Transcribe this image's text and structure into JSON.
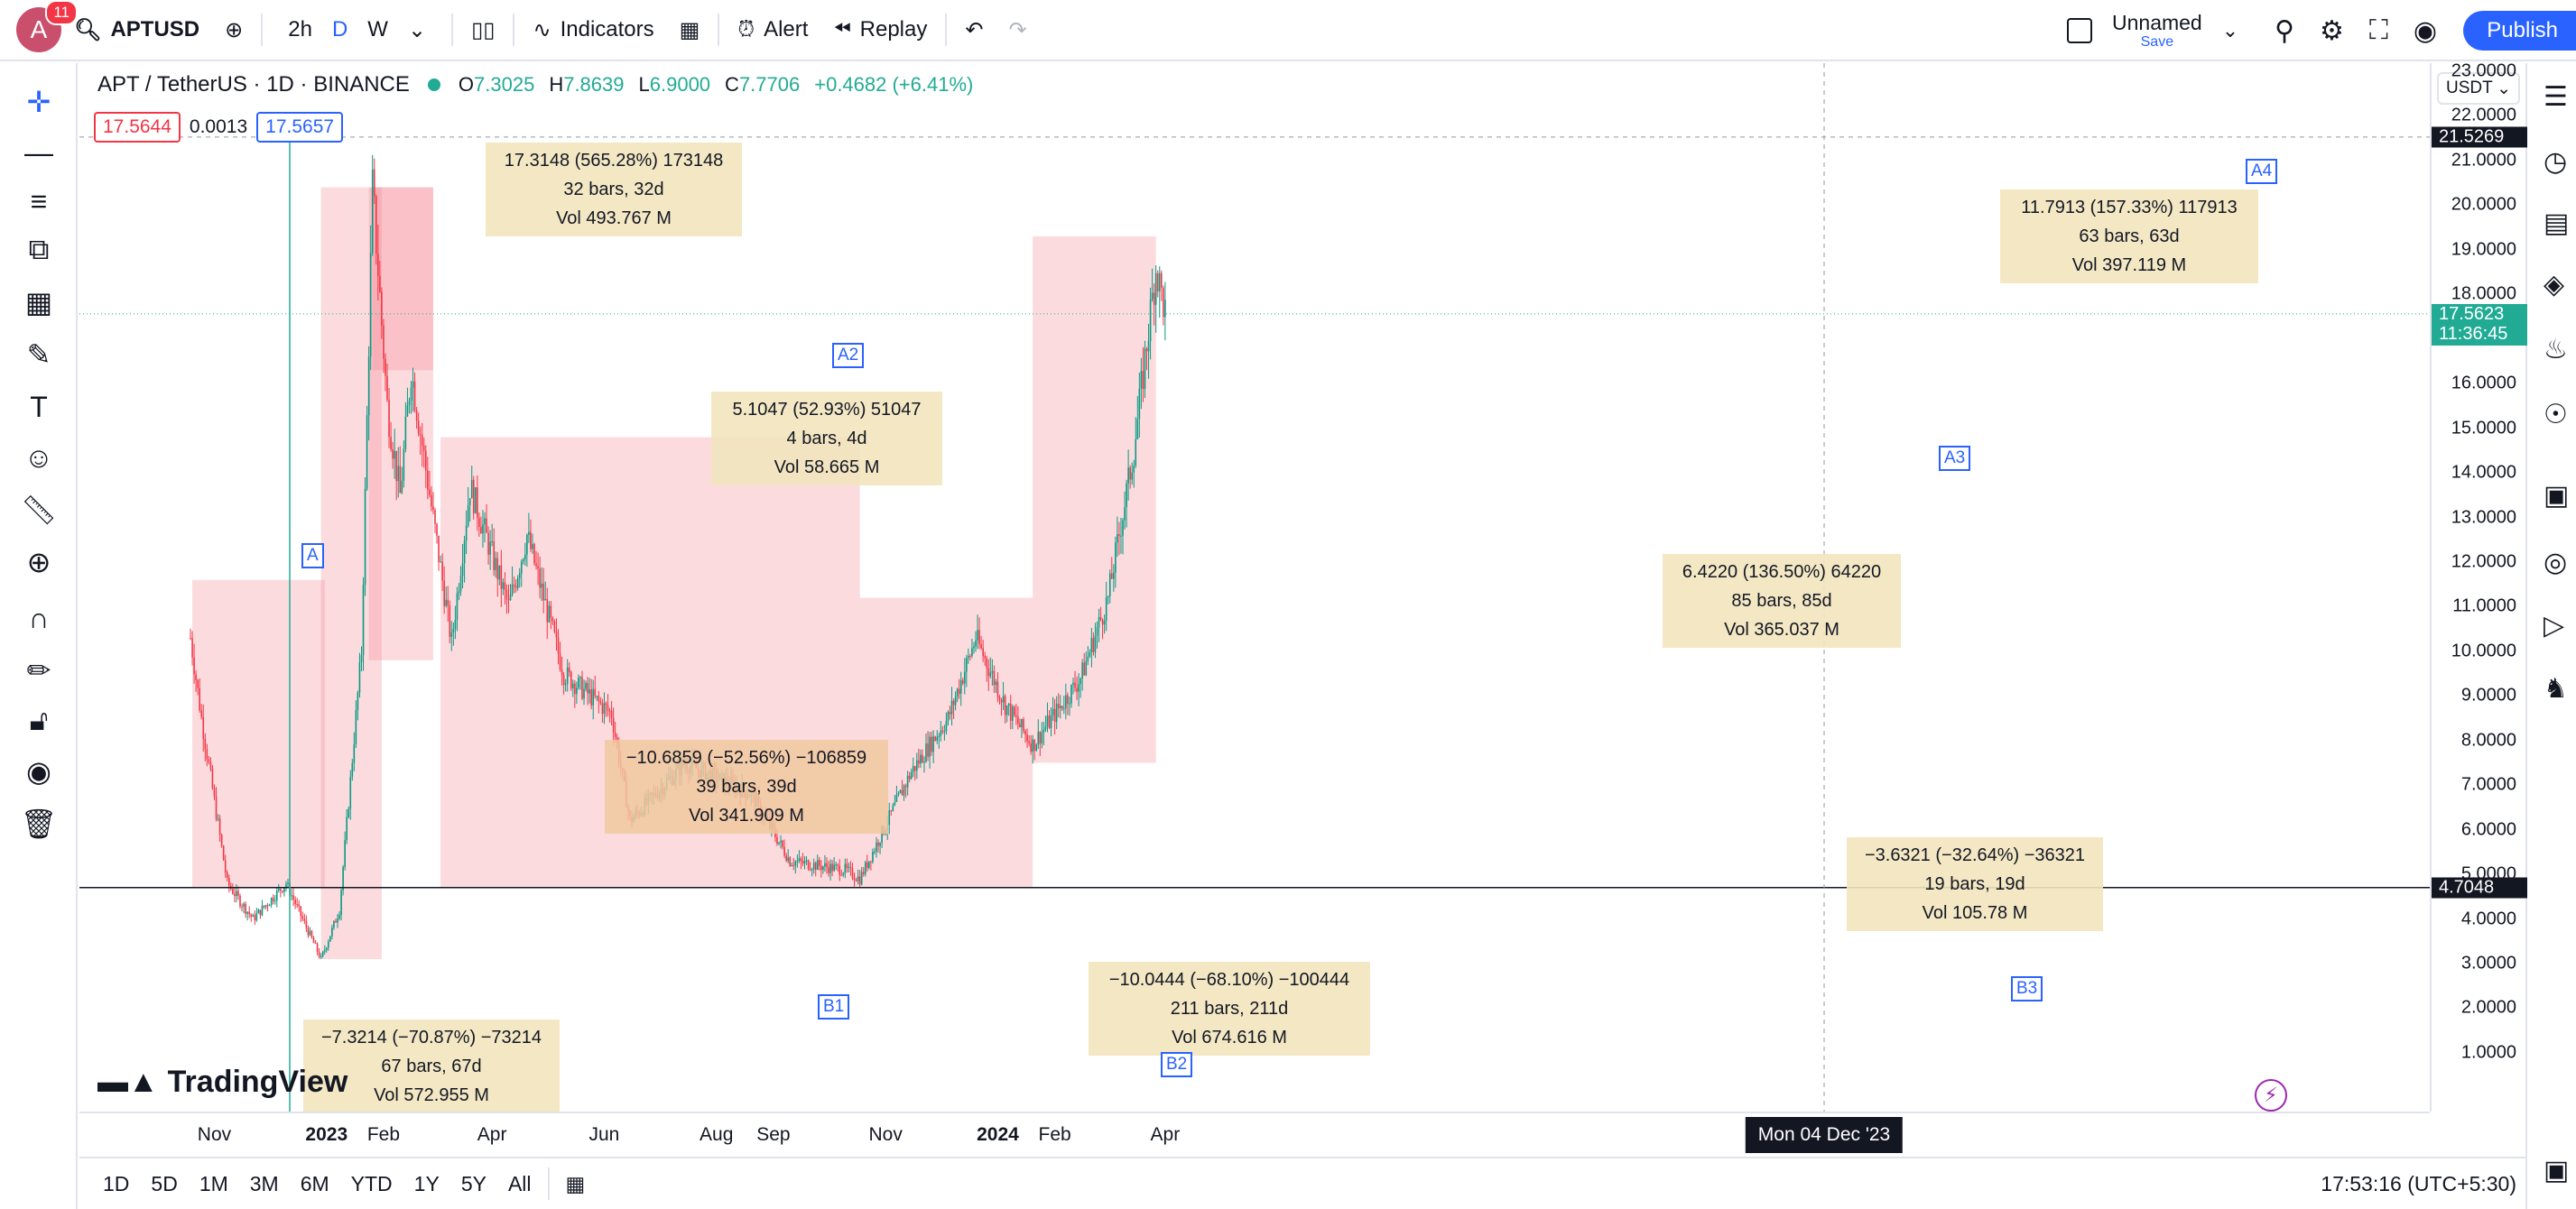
{
  "app": {
    "symbol_button": "APTUSD",
    "notification_count": "11",
    "avatar_letter": "A",
    "intervals": [
      "2h",
      "D",
      "W"
    ],
    "active_interval": "D",
    "indicators_label": "Indicators",
    "alert_label": "Alert",
    "replay_label": "Replay",
    "layout_name": "Unnamed",
    "save_label": "Save",
    "publish_label": "Publish"
  },
  "legend": {
    "title": "APT / TetherUS · 1D · BINANCE",
    "open": "7.3025",
    "high": "7.8639",
    "low": "6.9000",
    "close": "7.7706",
    "change": "+0.4682 (+6.41%)",
    "bid": "17.5644",
    "spread": "0.0013",
    "ask": "17.5657"
  },
  "price_scale": {
    "currency": "USDT",
    "labels": [
      "23.0000",
      "22.0000",
      "21.0000",
      "20.0000",
      "19.0000",
      "18.0000",
      "17.0000",
      "16.0000",
      "15.0000",
      "14.0000",
      "13.0000",
      "12.0000",
      "11.0000",
      "10.0000",
      "9.0000",
      "8.0000",
      "7.0000",
      "6.0000",
      "5.0000",
      "4.0000",
      "3.0000",
      "2.0000",
      "1.0000"
    ],
    "crosshair_price": "21.5269",
    "last_price": "17.5623",
    "countdown": "11:36:45",
    "hline_price": "4.7048"
  },
  "time_scale": {
    "labels": [
      {
        "text": "Nov",
        "bold": false
      },
      {
        "text": "2023",
        "bold": true
      },
      {
        "text": "Feb",
        "bold": false
      },
      {
        "text": "Apr",
        "bold": false
      },
      {
        "text": "Jun",
        "bold": false
      },
      {
        "text": "Aug",
        "bold": false
      },
      {
        "text": "Sep",
        "bold": false
      },
      {
        "text": "Nov",
        "bold": false
      },
      {
        "text": "2024",
        "bold": true
      },
      {
        "text": "Feb",
        "bold": false
      },
      {
        "text": "Apr",
        "bold": false
      }
    ],
    "crosshair_date": "Mon 04 Dec '23"
  },
  "bottom": {
    "ranges": [
      "1D",
      "5D",
      "1M",
      "3M",
      "6M",
      "YTD",
      "1Y",
      "5Y",
      "All"
    ],
    "clock": "17:53:16 (UTC+5:30)"
  },
  "watermark": "TradingView",
  "point_labels": [
    "A",
    "A2",
    "B1",
    "B2",
    "A3",
    "B3",
    "A4"
  ],
  "measures": [
    {
      "line1": "17.3148 (565.28%) 173148",
      "line2": "32 bars, 32d",
      "line3": "Vol 493.767 M"
    },
    {
      "line1": "5.1047 (52.93%) 51047",
      "line2": "4 bars, 4d",
      "line3": "Vol 58.665 M"
    },
    {
      "line1": "−10.6859 (−52.56%) −106859",
      "line2": "39 bars, 39d",
      "line3": "Vol 341.909 M"
    },
    {
      "line1": "−7.3214 (−70.87%) −73214",
      "line2": "67 bars, 67d",
      "line3": "Vol 572.955 M"
    },
    {
      "line1": "−10.0444 (−68.10%) −100444",
      "line2": "211 bars, 211d",
      "line3": "Vol 674.616 M"
    },
    {
      "line1": "6.4220 (136.50%) 64220",
      "line2": "85 bars, 85d",
      "line3": "Vol 365.037 M"
    },
    {
      "line1": "−3.6321 (−32.64%) −36321",
      "line2": "19 bars, 19d",
      "line3": "Vol 105.78 M"
    },
    {
      "line1": "11.7913 (157.33%) 117913",
      "line2": "63 bars, 63d",
      "line3": "Vol 397.119 M"
    }
  ],
  "chart_data": {
    "type": "candlestick",
    "ylim": [
      1,
      23
    ],
    "anchors": [
      {
        "date": "2022-10-19",
        "price": 10.3
      },
      {
        "date": "2022-10-25",
        "price": 8.5
      },
      {
        "date": "2022-11-08",
        "price": 4.8
      },
      {
        "date": "2022-11-22",
        "price": 4.0
      },
      {
        "date": "2022-12-10",
        "price": 4.8
      },
      {
        "date": "2022-12-29",
        "price": 3.1
      },
      {
        "date": "2023-01-08",
        "price": 4.2
      },
      {
        "date": "2023-01-20",
        "price": 10.0
      },
      {
        "date": "2023-01-26",
        "price": 20.4
      },
      {
        "date": "2023-02-03",
        "price": 15.5
      },
      {
        "date": "2023-02-10",
        "price": 13.5
      },
      {
        "date": "2023-02-16",
        "price": 16.3
      },
      {
        "date": "2023-03-10",
        "price": 10.2
      },
      {
        "date": "2023-03-20",
        "price": 13.7
      },
      {
        "date": "2023-04-10",
        "price": 11.0
      },
      {
        "date": "2023-04-20",
        "price": 12.6
      },
      {
        "date": "2023-05-10",
        "price": 9.5
      },
      {
        "date": "2023-06-05",
        "price": 8.6
      },
      {
        "date": "2023-06-15",
        "price": 6.2
      },
      {
        "date": "2023-07-15",
        "price": 7.5
      },
      {
        "date": "2023-08-20",
        "price": 6.8
      },
      {
        "date": "2023-09-10",
        "price": 5.3
      },
      {
        "date": "2023-10-10",
        "price": 5.1
      },
      {
        "date": "2023-10-18",
        "price": 4.9
      },
      {
        "date": "2023-11-15",
        "price": 7.3
      },
      {
        "date": "2023-12-05",
        "price": 8.5
      },
      {
        "date": "2023-12-20",
        "price": 10.3
      },
      {
        "date": "2024-01-05",
        "price": 8.8
      },
      {
        "date": "2024-01-20",
        "price": 7.9
      },
      {
        "date": "2024-02-15",
        "price": 9.4
      },
      {
        "date": "2024-03-01",
        "price": 11.2
      },
      {
        "date": "2024-03-15",
        "price": 14.5
      },
      {
        "date": "2024-03-27",
        "price": 18.6
      },
      {
        "date": "2024-04-01",
        "price": 17.6
      }
    ]
  }
}
